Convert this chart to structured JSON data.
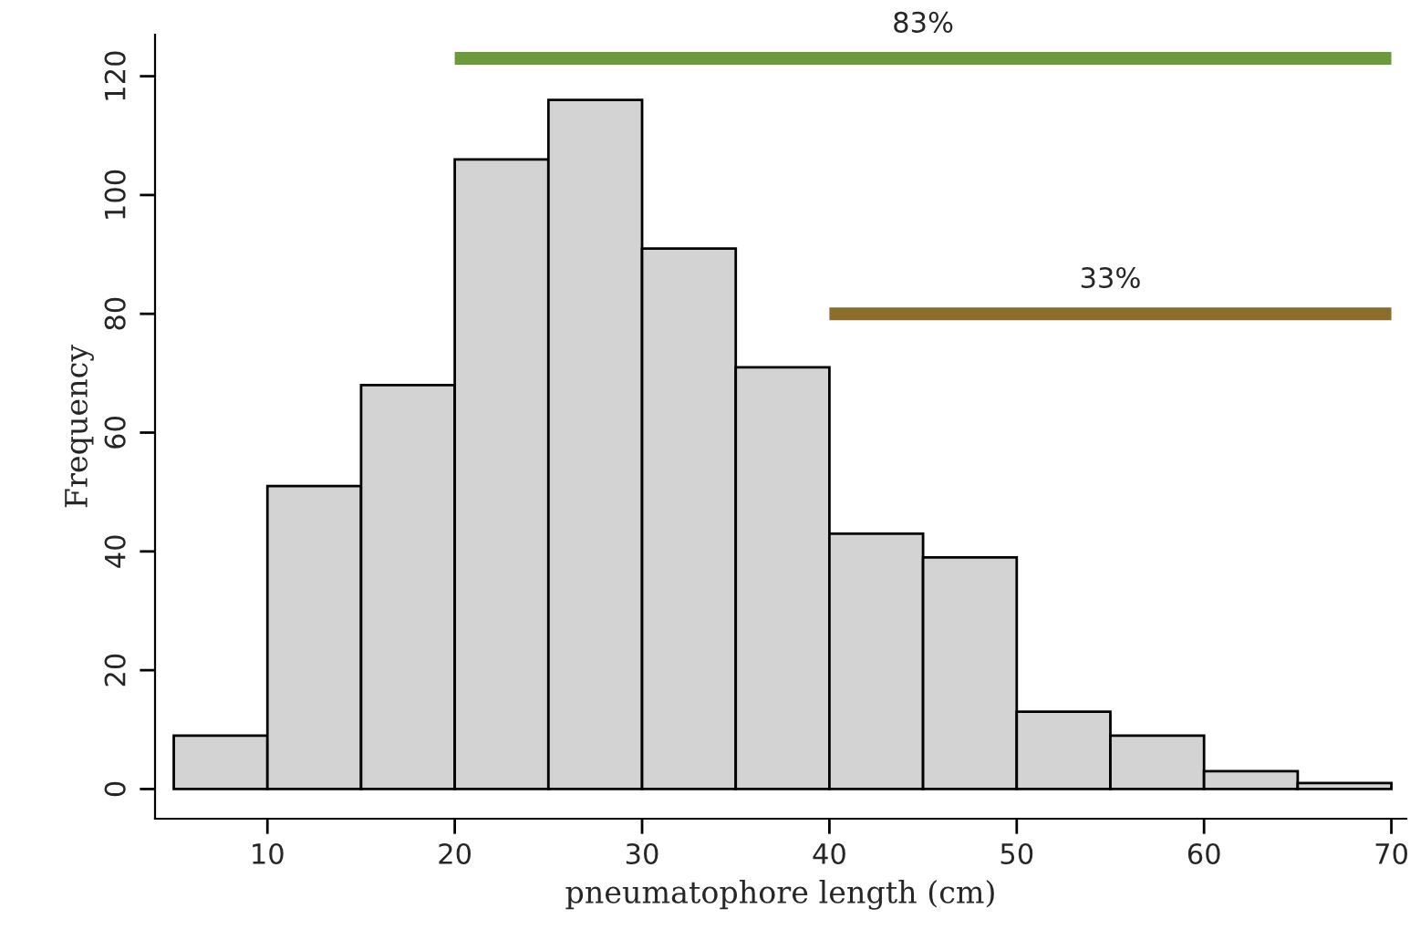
{
  "chart_data": {
    "type": "histogram",
    "xlabel": "pneumatophore length (cm)",
    "ylabel": "Frequency",
    "series": [
      {
        "color": "#d3d3d3",
        "bins": [
          5,
          10,
          15,
          20,
          25,
          30,
          35,
          40,
          45,
          50,
          55,
          60,
          65,
          70
        ],
        "values": [
          9,
          51,
          68,
          106,
          116,
          91,
          71,
          43,
          39,
          13,
          9,
          3,
          1
        ]
      },
      {
        "type": "line",
        "color": "#6b9a3a",
        "x": [
          20,
          70
        ],
        "values": [
          123,
          123
        ]
      },
      {
        "type": "line",
        "color": "#8c6d2c",
        "x": [
          40,
          70
        ],
        "values": [
          80,
          80
        ]
      }
    ],
    "annotations": [
      {
        "text": "83%",
        "x": 45,
        "y": 123
      },
      {
        "text": "33%",
        "x": 55,
        "y": 80
      }
    ],
    "xlim": [
      4,
      70.8
    ],
    "ylim": [
      -5,
      127
    ],
    "xticks": [
      10,
      20,
      30,
      40,
      50,
      60,
      70
    ],
    "yticks": [
      0,
      20,
      40,
      60,
      80,
      100,
      120
    ],
    "grid": false,
    "legend": false
  }
}
